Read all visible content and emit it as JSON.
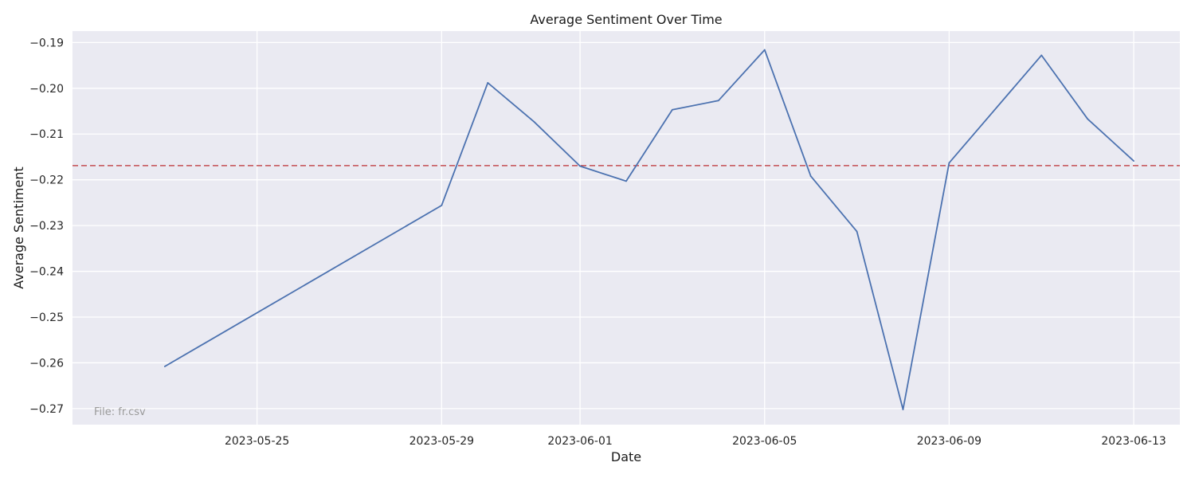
{
  "chart_data": {
    "type": "line",
    "title": "Average Sentiment Over Time",
    "xlabel": "Date",
    "ylabel": "Average Sentiment",
    "xlim": [
      "2023-05-21",
      "2023-06-14"
    ],
    "ylim": [
      -0.2735,
      -0.1875
    ],
    "x_ticks": [
      "2023-05-25",
      "2023-05-29",
      "2023-06-01",
      "2023-06-05",
      "2023-06-09",
      "2023-06-13"
    ],
    "y_ticks": [
      -0.19,
      -0.2,
      -0.21,
      -0.22,
      -0.23,
      -0.24,
      -0.25,
      -0.26,
      -0.27
    ],
    "y_tick_labels": [
      "−0.19",
      "−0.20",
      "−0.21",
      "−0.22",
      "−0.23",
      "−0.24",
      "−0.25",
      "−0.26",
      "−0.27"
    ],
    "grid": true,
    "series": [
      {
        "color": "#4c72b0",
        "x": [
          "2023-05-23",
          "2023-05-29",
          "2023-05-30",
          "2023-05-31",
          "2023-06-01",
          "2023-06-02",
          "2023-06-03",
          "2023-06-04",
          "2023-06-05",
          "2023-06-06",
          "2023-06-07",
          "2023-06-08",
          "2023-06-09",
          "2023-06-11",
          "2023-06-12",
          "2023-06-13"
        ],
        "y": [
          -0.2608,
          -0.2256,
          -0.1988,
          -0.2073,
          -0.217,
          -0.2203,
          -0.2047,
          -0.2027,
          -0.1916,
          -0.2192,
          -0.2313,
          -0.2702,
          -0.2163,
          -0.1928,
          -0.2067,
          -0.2159
        ]
      }
    ],
    "reference_line": {
      "y": -0.2169,
      "color": "#c44e52",
      "style": "dashed"
    },
    "annotation": "File: fr.csv",
    "colors": {
      "plot_bg": "#eaeaf2",
      "grid": "#ffffff"
    }
  }
}
